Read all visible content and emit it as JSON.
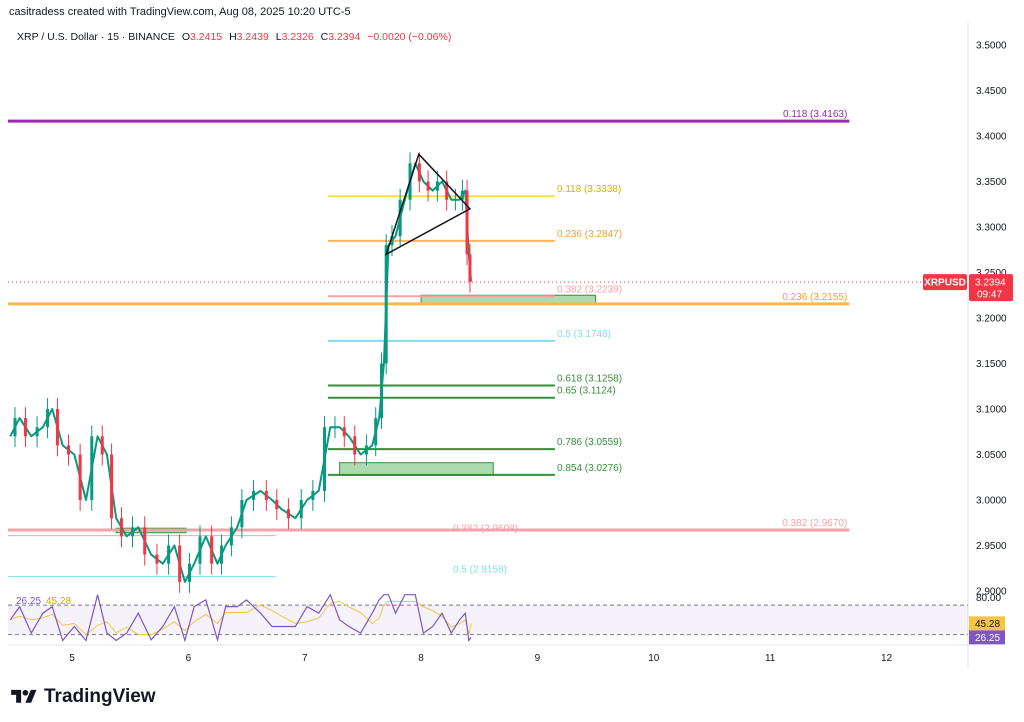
{
  "header": {
    "credit": "casitradess created with TradingView.com, Aug 08, 2025 10:20 UTC-5",
    "symbol": "XRP / U.S. Dollar · 15 · BINANCE",
    "o_label": "O",
    "open": "3.2415",
    "h_label": "H",
    "high": "3.2439",
    "l_label": "L",
    "low": "3.2326",
    "c_label": "C",
    "close": "3.2394",
    "change": "−0.0020 (−0.06%)"
  },
  "brand": {
    "name": "TradingView"
  },
  "colors": {
    "up": "#089981",
    "down": "#f23645",
    "purple": "#9c27b0",
    "yellow": "#f5e043",
    "orange": "#ffb74d",
    "pink": "#f7a1a8",
    "cyan": "#80deea",
    "green": "#388e3c",
    "rsi": "#7e57c2",
    "rsi_ma": "#f5c542",
    "zone": "#81c784"
  },
  "chart_data": {
    "type": "candlestick",
    "symbol": "XRPUSD",
    "price_axis": {
      "ticks": [
        "3.5000",
        "3.4500",
        "3.4000",
        "3.3500",
        "3.3000",
        "3.2500",
        "3.2000",
        "3.1500",
        "3.1000",
        "3.0500",
        "3.0000",
        "2.9500",
        "2.9000"
      ],
      "range": [
        2.9,
        3.5
      ]
    },
    "time_axis": {
      "ticks": [
        {
          "label": "5",
          "day": 5
        },
        {
          "label": "6",
          "day": 6
        },
        {
          "label": "7",
          "day": 7
        },
        {
          "label": "8",
          "day": 8
        },
        {
          "label": "9",
          "day": 9
        },
        {
          "label": "10",
          "day": 10
        },
        {
          "label": "11",
          "day": 11
        },
        {
          "label": "12",
          "day": 12
        }
      ],
      "range_days": [
        4.45,
        12.7
      ]
    },
    "last_price": {
      "label": "XRPUSD",
      "value": "3.2394",
      "countdown": "09:47"
    },
    "price_path": [
      [
        4.47,
        3.07
      ],
      [
        4.55,
        3.09
      ],
      [
        4.65,
        3.07
      ],
      [
        4.75,
        3.08
      ],
      [
        4.83,
        3.1
      ],
      [
        4.92,
        3.06
      ],
      [
        5.02,
        3.05
      ],
      [
        5.12,
        3.0
      ],
      [
        5.22,
        3.07
      ],
      [
        5.3,
        3.05
      ],
      [
        5.38,
        2.98
      ],
      [
        5.47,
        2.96
      ],
      [
        5.57,
        2.97
      ],
      [
        5.68,
        2.94
      ],
      [
        5.78,
        2.93
      ],
      [
        5.88,
        2.95
      ],
      [
        5.97,
        2.91
      ],
      [
        6.05,
        2.93
      ],
      [
        6.15,
        2.96
      ],
      [
        6.25,
        2.93
      ],
      [
        6.32,
        2.95
      ],
      [
        6.42,
        2.97
      ],
      [
        6.5,
        3.0
      ],
      [
        6.62,
        3.01
      ],
      [
        6.72,
        3.0
      ],
      [
        6.8,
        2.99
      ],
      [
        6.92,
        2.98
      ],
      [
        7.02,
        3.0
      ],
      [
        7.12,
        3.01
      ],
      [
        7.22,
        3.08
      ],
      [
        7.3,
        3.08
      ],
      [
        7.38,
        3.07
      ],
      [
        7.48,
        3.05
      ],
      [
        7.58,
        3.06
      ],
      [
        7.64,
        3.09
      ],
      [
        7.68,
        3.15
      ],
      [
        7.72,
        3.28
      ],
      [
        7.78,
        3.29
      ],
      [
        7.86,
        3.33
      ],
      [
        7.95,
        3.37
      ],
      [
        8.02,
        3.35
      ],
      [
        8.1,
        3.34
      ],
      [
        8.18,
        3.35
      ],
      [
        8.26,
        3.33
      ],
      [
        8.33,
        3.33
      ],
      [
        8.38,
        3.34
      ],
      [
        8.41,
        3.27
      ],
      [
        8.43,
        3.24
      ]
    ],
    "triangle": {
      "points": [
        [
          7.98,
          3.38
        ],
        [
          8.42,
          3.32
        ],
        [
          7.7,
          3.27
        ]
      ]
    },
    "fib_levels": [
      {
        "label": "0.118 (3.4163)",
        "price": 3.4163,
        "from": 4.45,
        "to": 11.68,
        "color": "purple",
        "width": 3
      },
      {
        "label": "0.118 (3.3338)",
        "price": 3.3338,
        "from": 7.2,
        "to": 9.15,
        "color": "yellow",
        "width": 2
      },
      {
        "label": "0.236 (3.2847)",
        "price": 3.2847,
        "from": 7.2,
        "to": 9.15,
        "color": "orange",
        "width": 2
      },
      {
        "label": "0.382 (3.2239)",
        "price": 3.2239,
        "from": 7.2,
        "to": 9.15,
        "color": "pink",
        "width": 2
      },
      {
        "label": "0.236 (3.2155)",
        "price": 3.2155,
        "from": 4.45,
        "to": 11.68,
        "color": "orange",
        "width": 3
      },
      {
        "label": "0.5 (3.1748)",
        "price": 3.1748,
        "from": 7.2,
        "to": 9.15,
        "color": "cyan",
        "width": 2
      },
      {
        "label": "0.618 (3.1258)",
        "price": 3.1258,
        "from": 7.2,
        "to": 9.15,
        "color": "green",
        "width": 2
      },
      {
        "label": "0.65 (3.1124)",
        "price": 3.1124,
        "from": 7.2,
        "to": 9.15,
        "color": "green",
        "width": 2
      },
      {
        "label": "0.786 (3.0559)",
        "price": 3.0559,
        "from": 7.2,
        "to": 9.15,
        "color": "green",
        "width": 2
      },
      {
        "label": "0.854 (3.0276)",
        "price": 3.0276,
        "from": 7.2,
        "to": 9.15,
        "color": "green",
        "width": 2
      },
      {
        "label": "0.382 (2.9608)",
        "price": 2.9608,
        "from": 4.45,
        "to": 6.75,
        "color": "pink",
        "width": 1
      },
      {
        "label": "0.382 (2.9670)",
        "price": 2.967,
        "from": 4.45,
        "to": 11.68,
        "color": "pink",
        "width": 3
      },
      {
        "label": "0.5 (2.9158)",
        "price": 2.9158,
        "from": 4.45,
        "to": 6.75,
        "color": "cyan",
        "width": 1
      }
    ],
    "label_placement": {
      "0.118 (3.4163)": "right",
      "0.236 (3.2155)": "right",
      "0.382 (2.9670)": "right",
      "0.382 (2.9608)": "mid",
      "0.5 (2.9158)": "mid"
    },
    "zones": [
      {
        "from": 8.0,
        "to": 9.5,
        "top": 3.225,
        "bottom": 3.215
      },
      {
        "from": 7.3,
        "to": 8.62,
        "top": 3.041,
        "bottom": 3.027
      },
      {
        "from": 5.38,
        "to": 5.98,
        "top": 2.969,
        "bottom": 2.964
      }
    ],
    "rsi": {
      "values_shown": [
        "26.25",
        "45.28"
      ],
      "rsi_value": 26.25,
      "ma_value": 45.28,
      "ticks": [
        "80.00"
      ],
      "upper": 70,
      "lower": 30,
      "range": [
        20,
        85
      ]
    }
  }
}
